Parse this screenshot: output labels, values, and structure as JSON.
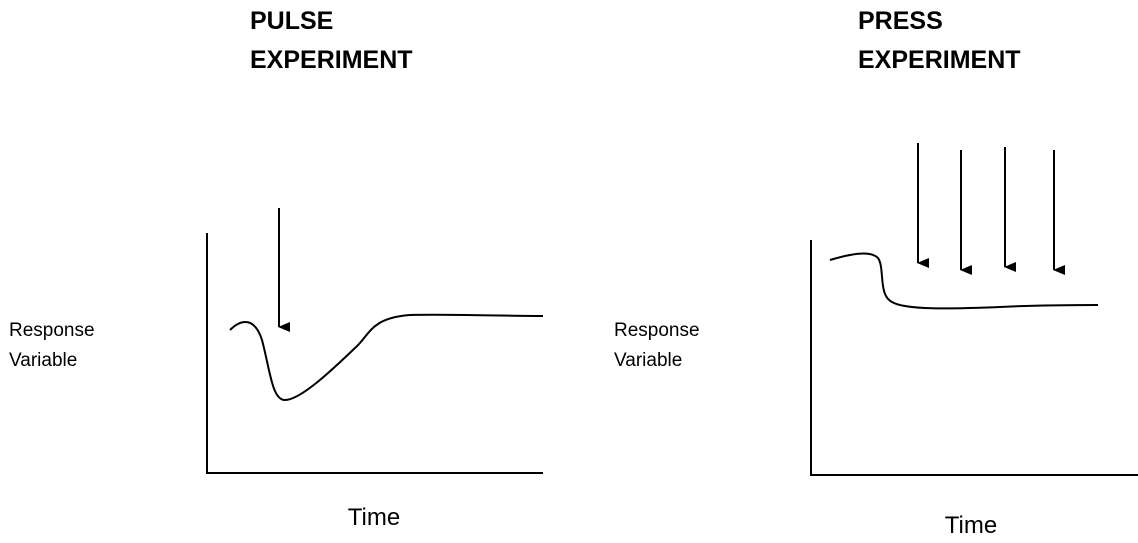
{
  "panels": [
    {
      "title_lines": [
        "PULSE",
        "EXPERIMENT"
      ],
      "y_label_lines": [
        "Response",
        "Variable"
      ],
      "x_label": "Time"
    },
    {
      "title_lines": [
        "PRESS",
        "EXPERIMENT"
      ],
      "y_label_lines": [
        "Response",
        "Variable"
      ],
      "x_label": "Time"
    }
  ]
}
